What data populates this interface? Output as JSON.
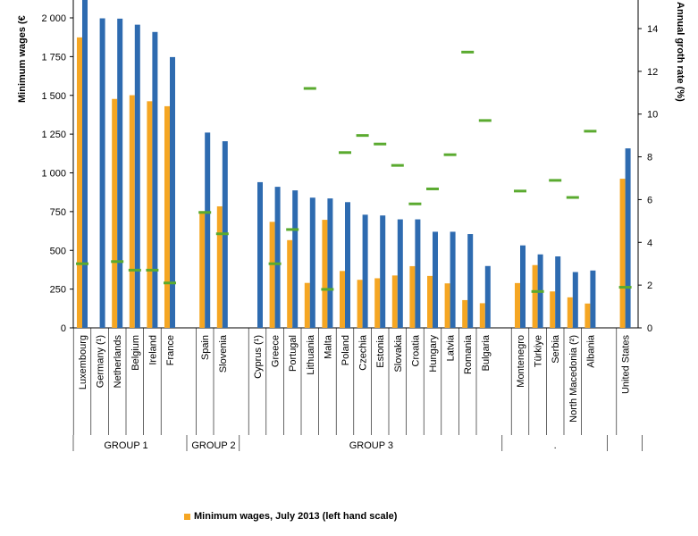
{
  "chart_data": {
    "type": "bar",
    "ylabel": "Minimum wages (€",
    "y2label": "Annual groth rate (%)",
    "ylim": [
      0,
      2200
    ],
    "y2lim": [
      0,
      15.3
    ],
    "yticks": [
      "0",
      "250",
      "500",
      "750",
      "1 000",
      "1 250",
      "1 500",
      "1 750",
      "2 000"
    ],
    "y2ticks": [
      "0",
      "2",
      "4",
      "6",
      "8",
      "10",
      "12",
      "14"
    ],
    "categories": [
      "Luxembourg",
      "Germany (¹)",
      "Netherlands",
      "Belgium",
      "Ireland",
      "France",
      "Spain",
      "Slovenia",
      "Cyprus (¹)",
      "Greece",
      "Portugal",
      "Lithuania",
      "Malta",
      "Poland",
      "Czechia",
      "Estonia",
      "Slovakia",
      "Croatia",
      "Hungary",
      "Latvia",
      "Romania",
      "Bulgaria",
      "Montenegro",
      "Türkiye",
      "Serbia",
      "North Macedonia (²)",
      "Albania",
      "United States"
    ],
    "groups": [
      {
        "label": "GROUP 1",
        "count": 6
      },
      {
        "label": "GROUP 2",
        "count": 2
      },
      {
        "label": "GROUP 3",
        "count": 14
      },
      {
        "label": ".",
        "count": 5
      },
      {
        "label": "",
        "count": 1
      }
    ],
    "series": [
      {
        "name": "Minimum wages, July 2013 (left hand scale)",
        "color": "#f5a623",
        "values": [
          1874,
          null,
          1477,
          1501,
          1462,
          1430,
          753,
          784,
          null,
          684,
          566,
          290,
          697,
          367,
          310,
          320,
          338,
          398,
          335,
          287,
          179,
          159,
          289,
          405,
          235,
          197,
          157,
          962
        ]
      },
      {
        "name": "",
        "color": "#2e6bb0",
        "values": [
          2200,
          1997,
          1995,
          1956,
          1909,
          1747,
          1260,
          1204,
          940,
          910,
          887,
          840,
          835,
          811,
          730,
          725,
          700,
          700,
          620,
          620,
          605,
          399,
          532,
          474,
          461,
          360,
          370,
          1158
        ]
      },
      {
        "name": "",
        "color": "#5aaa2f",
        "type": "marker",
        "values": [
          3.0,
          null,
          3.1,
          2.7,
          2.7,
          2.1,
          5.4,
          4.4,
          null,
          3.0,
          4.6,
          11.2,
          1.8,
          8.2,
          9.0,
          8.6,
          7.6,
          5.8,
          6.5,
          8.1,
          12.9,
          9.7,
          6.4,
          1.7,
          6.9,
          6.1,
          9.2,
          1.9
        ]
      }
    ]
  }
}
